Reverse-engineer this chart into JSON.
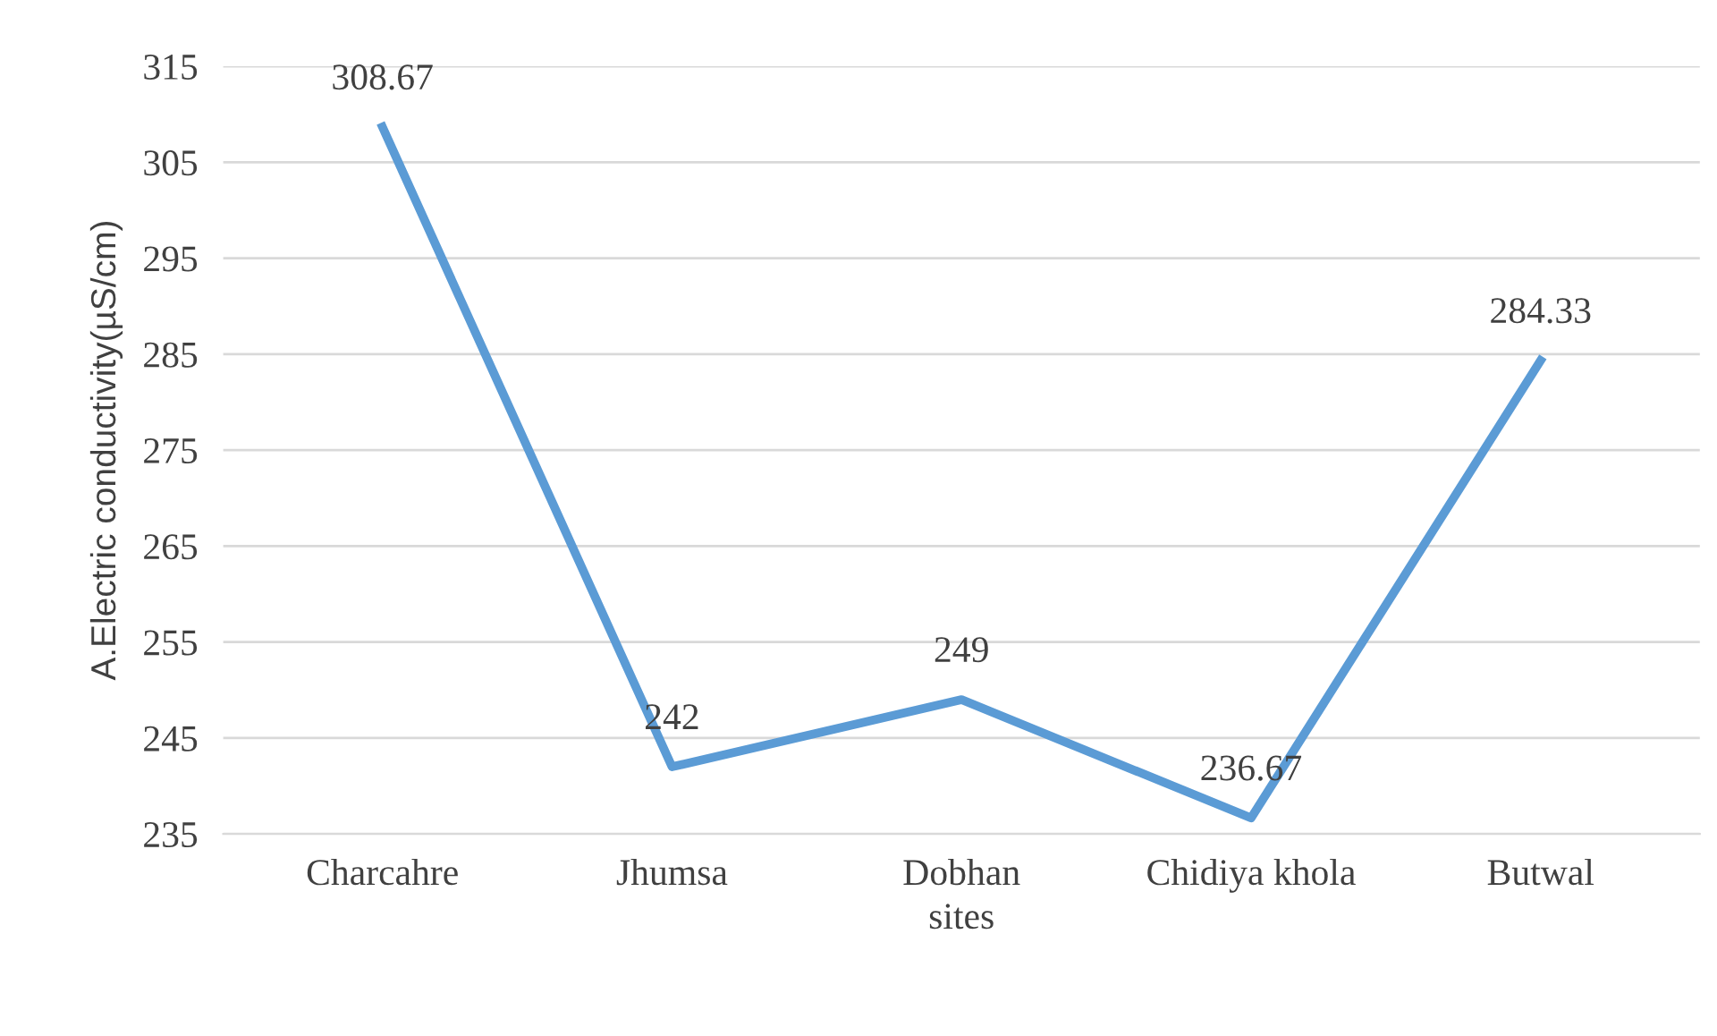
{
  "chart_data": {
    "type": "line",
    "categories": [
      "Charcahre",
      "Jhumsa",
      "Dobhan",
      "Chidiya khola",
      "Butwal"
    ],
    "series": [
      {
        "color": "#5b9bd5",
        "values": [
          308.67,
          242,
          249,
          236.67,
          284.33
        ]
      }
    ],
    "xlabel": "sites",
    "ylabel": "A.Electric conductivity(µS/cm)",
    "ylim": [
      235,
      315
    ],
    "yticks": [
      235,
      245,
      255,
      265,
      275,
      285,
      295,
      305,
      315
    ],
    "grid": "y",
    "data_labels": true,
    "marker": "none",
    "line_style": "solid"
  }
}
